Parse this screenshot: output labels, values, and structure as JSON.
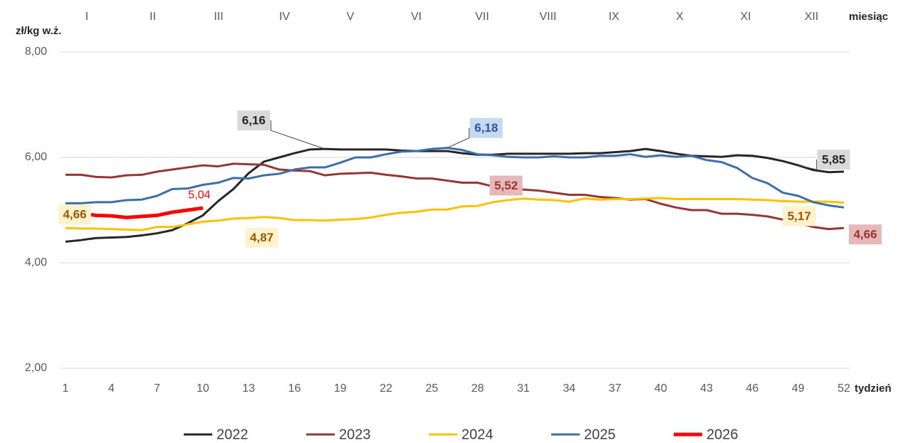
{
  "chart_data": {
    "type": "line",
    "y_label": "zł/kg w.ż.",
    "x_label": "tydzień",
    "month_label": "miesiąc",
    "months": [
      "I",
      "II",
      "III",
      "IV",
      "V",
      "VI",
      "VII",
      "VIII",
      "IX",
      "X",
      "XI",
      "XII"
    ],
    "x": [
      1,
      2,
      3,
      4,
      5,
      6,
      7,
      8,
      9,
      10,
      11,
      12,
      13,
      14,
      15,
      16,
      17,
      18,
      19,
      20,
      21,
      22,
      23,
      24,
      25,
      26,
      27,
      28,
      29,
      30,
      31,
      32,
      33,
      34,
      35,
      36,
      37,
      38,
      39,
      40,
      41,
      42,
      43,
      44,
      45,
      46,
      47,
      48,
      49,
      50,
      51,
      52
    ],
    "xlim": [
      1,
      52
    ],
    "xticks": [
      1,
      4,
      7,
      10,
      13,
      16,
      19,
      22,
      25,
      28,
      31,
      34,
      37,
      40,
      43,
      46,
      49,
      52
    ],
    "ylim": [
      2,
      8
    ],
    "yticks": [
      {
        "value": 2,
        "label": "2,00"
      },
      {
        "value": 4,
        "label": "4,00"
      },
      {
        "value": 6,
        "label": "6,00"
      },
      {
        "value": 8,
        "label": "8,00"
      }
    ],
    "grid": true,
    "legend": "bottom",
    "series": [
      {
        "name": "2022",
        "color": "#262626",
        "values": [
          4.4,
          4.43,
          4.47,
          4.48,
          4.49,
          4.52,
          4.56,
          4.62,
          4.75,
          4.9,
          5.17,
          5.4,
          5.7,
          5.92,
          6.0,
          6.08,
          6.15,
          6.16,
          6.15,
          6.15,
          6.15,
          6.15,
          6.13,
          6.12,
          6.12,
          6.12,
          6.08,
          6.05,
          6.05,
          6.07,
          6.07,
          6.07,
          6.07,
          6.07,
          6.08,
          6.08,
          6.1,
          6.12,
          6.16,
          6.12,
          6.07,
          6.03,
          6.02,
          6.01,
          6.04,
          6.03,
          5.99,
          5.93,
          5.85,
          5.76,
          5.72,
          5.73
        ],
        "value_labels": [
          null,
          null,
          null,
          null,
          null,
          null,
          null,
          null,
          null,
          null,
          null,
          null,
          null,
          null,
          null,
          null,
          null,
          "6,16",
          null,
          null,
          null,
          null,
          null,
          null,
          null,
          null,
          null,
          null,
          null,
          null,
          null,
          null,
          null,
          null,
          null,
          null,
          null,
          null,
          null,
          null,
          null,
          null,
          null,
          null,
          null,
          null,
          null,
          null,
          "5,85",
          null,
          null,
          null
        ]
      },
      {
        "name": "2023",
        "color": "#953735",
        "values": [
          5.67,
          5.67,
          5.63,
          5.62,
          5.66,
          5.67,
          5.73,
          5.77,
          5.81,
          5.85,
          5.83,
          5.88,
          5.87,
          5.86,
          5.77,
          5.75,
          5.74,
          5.66,
          5.69,
          5.7,
          5.71,
          5.67,
          5.64,
          5.6,
          5.6,
          5.56,
          5.52,
          5.52,
          5.45,
          5.4,
          5.39,
          5.37,
          5.33,
          5.29,
          5.29,
          5.25,
          5.23,
          5.2,
          5.21,
          5.12,
          5.05,
          5.0,
          5.0,
          4.93,
          4.93,
          4.91,
          4.88,
          4.82,
          4.75,
          4.68,
          4.64,
          4.66
        ],
        "value_labels": [
          null,
          null,
          null,
          null,
          null,
          null,
          null,
          null,
          null,
          null,
          null,
          null,
          null,
          null,
          null,
          null,
          null,
          null,
          null,
          null,
          null,
          null,
          null,
          null,
          null,
          null,
          null,
          "5,52",
          null,
          null,
          null,
          null,
          null,
          null,
          null,
          null,
          null,
          null,
          null,
          null,
          null,
          null,
          null,
          null,
          null,
          null,
          null,
          null,
          null,
          null,
          null,
          "4,66"
        ]
      },
      {
        "name": "2024",
        "color": "#ffc000",
        "values": [
          4.66,
          4.65,
          4.65,
          4.64,
          4.63,
          4.62,
          4.68,
          4.68,
          4.73,
          4.78,
          4.8,
          4.84,
          4.85,
          4.87,
          4.85,
          4.81,
          4.81,
          4.8,
          4.82,
          4.83,
          4.86,
          4.91,
          4.95,
          4.97,
          5.01,
          5.01,
          5.07,
          5.08,
          5.15,
          5.19,
          5.22,
          5.2,
          5.19,
          5.16,
          5.22,
          5.2,
          5.21,
          5.21,
          5.22,
          5.23,
          5.21,
          5.21,
          5.21,
          5.21,
          5.21,
          5.2,
          5.19,
          5.17,
          5.16,
          5.16,
          5.16,
          5.14
        ],
        "value_labels": [
          "4,66",
          null,
          null,
          null,
          null,
          null,
          null,
          null,
          null,
          null,
          null,
          null,
          null,
          "4,87",
          null,
          null,
          null,
          null,
          null,
          null,
          null,
          null,
          null,
          null,
          null,
          null,
          null,
          null,
          null,
          null,
          null,
          null,
          null,
          null,
          null,
          null,
          null,
          null,
          null,
          null,
          null,
          null,
          null,
          null,
          null,
          null,
          null,
          "5,17",
          null,
          null,
          null,
          null
        ]
      },
      {
        "name": "2025",
        "color": "#3e6ea8",
        "values": [
          5.13,
          5.13,
          5.15,
          5.15,
          5.19,
          5.2,
          5.27,
          5.4,
          5.41,
          5.48,
          5.52,
          5.61,
          5.6,
          5.66,
          5.69,
          5.77,
          5.81,
          5.81,
          5.9,
          6.0,
          6.0,
          6.06,
          6.11,
          6.12,
          6.16,
          6.18,
          6.14,
          6.06,
          6.04,
          6.01,
          6.0,
          6.0,
          6.02,
          6.0,
          6.0,
          6.03,
          6.03,
          6.06,
          6.01,
          6.04,
          6.01,
          6.03,
          5.95,
          5.91,
          5.8,
          5.61,
          5.51,
          5.33,
          5.27,
          5.15,
          5.09,
          5.05
        ],
        "value_labels": [
          null,
          null,
          null,
          null,
          null,
          null,
          null,
          null,
          null,
          null,
          null,
          null,
          null,
          null,
          null,
          null,
          null,
          null,
          null,
          null,
          null,
          null,
          null,
          null,
          null,
          "6,18",
          null,
          null,
          null,
          null,
          null,
          null,
          null,
          null,
          null,
          null,
          null,
          null,
          null,
          null,
          null,
          null,
          null,
          null,
          null,
          null,
          null,
          null,
          null,
          null,
          null,
          null
        ]
      },
      {
        "name": "2026",
        "color": "#ff0000",
        "values": [
          4.97,
          4.94,
          4.9,
          4.89,
          4.86,
          4.88,
          4.9,
          4.96,
          5.0,
          5.04,
          null,
          null,
          null,
          null,
          null,
          null,
          null,
          null,
          null,
          null,
          null,
          null,
          null,
          null,
          null,
          null,
          null,
          null,
          null,
          null,
          null,
          null,
          null,
          null,
          null,
          null,
          null,
          null,
          null,
          null,
          null,
          null,
          null,
          null,
          null,
          null,
          null,
          null,
          null,
          null,
          null,
          null
        ],
        "value_labels": [
          null,
          null,
          null,
          null,
          null,
          null,
          null,
          null,
          null,
          "5,04",
          null,
          null,
          null,
          null,
          null,
          null,
          null,
          null,
          null,
          null,
          null,
          null,
          null,
          null,
          null,
          null,
          null,
          null,
          null,
          null,
          null,
          null,
          null,
          null,
          null,
          null,
          null,
          null,
          null,
          null,
          null,
          null,
          null,
          null,
          null,
          null,
          null,
          null,
          null,
          null,
          null,
          null
        ]
      }
    ]
  }
}
